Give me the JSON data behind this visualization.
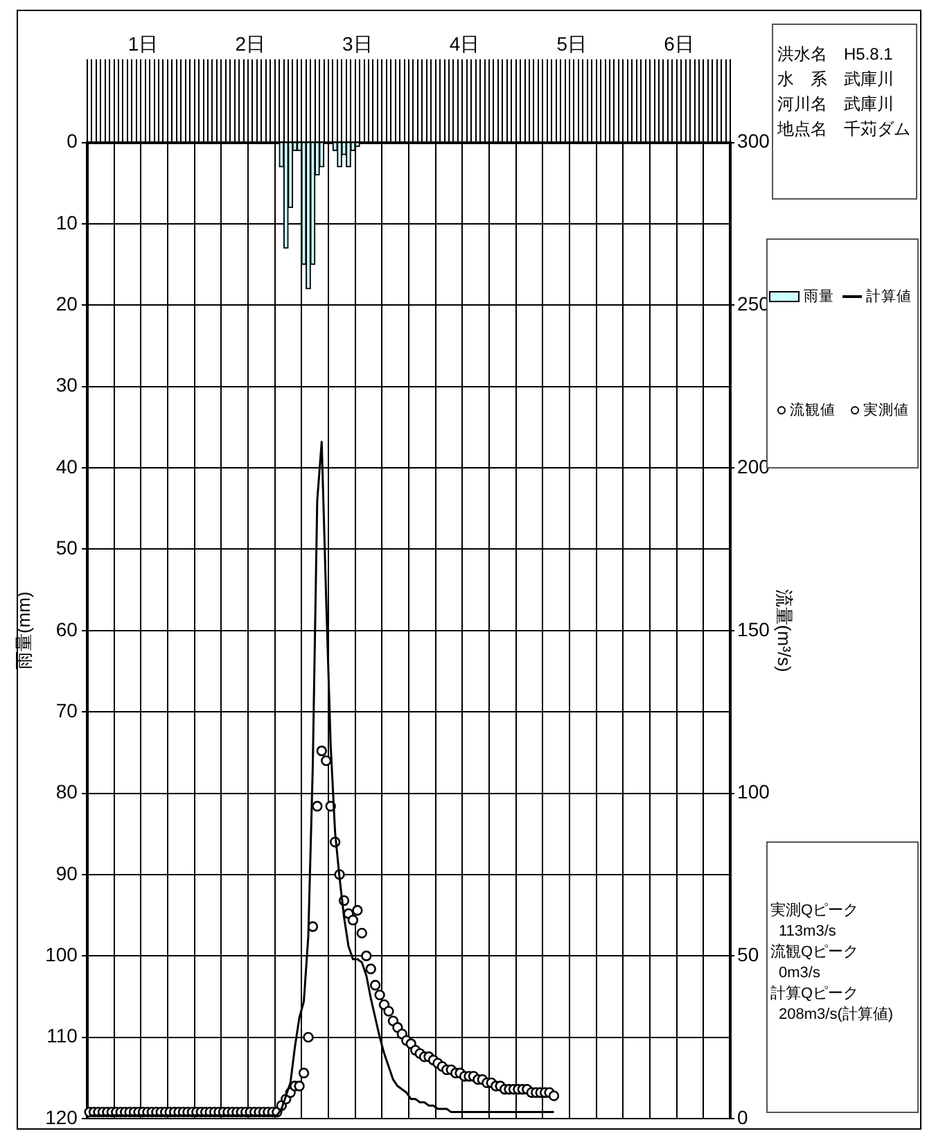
{
  "chart_data": {
    "type": "line",
    "categories": [
      null,
      null,
      null,
      null,
      null,
      null,
      null,
      null,
      null,
      null,
      null,
      null,
      "1日",
      null,
      null,
      null,
      null,
      null,
      null,
      null,
      null,
      null,
      null,
      null,
      null,
      null,
      null,
      null,
      null,
      null,
      null,
      null,
      null,
      null,
      null,
      null,
      "2日",
      null,
      null,
      null,
      null,
      null,
      null,
      null,
      null,
      null,
      null,
      null,
      null,
      null,
      null,
      null,
      null,
      null,
      null,
      null,
      null,
      null,
      null,
      null,
      "3日",
      null,
      null,
      null,
      null,
      null,
      null,
      null,
      null,
      null,
      null,
      null,
      null,
      null,
      null,
      null,
      null,
      null,
      null,
      null,
      null,
      null,
      null,
      null,
      "4日",
      null,
      null,
      null,
      null,
      null,
      null,
      null,
      null,
      null,
      null,
      null,
      null,
      null,
      null,
      null,
      null,
      null,
      null,
      null,
      null,
      null,
      null,
      null,
      "5日",
      null,
      null,
      null,
      null,
      null,
      null,
      null,
      null,
      null,
      null,
      null,
      null,
      null,
      null,
      null,
      null,
      null,
      null,
      null,
      null,
      null,
      null,
      null,
      "6日",
      null,
      null,
      null,
      null,
      null,
      null,
      null,
      null,
      null,
      null,
      null
    ],
    "ylabel": "雨量(mm)",
    "y2label": "流量(m³/s)",
    "ylim": [
      120,
      0
    ],
    "yticks": [
      0,
      10,
      20,
      30,
      40,
      50,
      60,
      70,
      80,
      90,
      100,
      110,
      120
    ],
    "y2lim": [
      0,
      300
    ],
    "y2ticks": [
      0,
      50,
      100,
      150,
      200,
      250,
      300
    ],
    "grid": true,
    "legend": "right",
    "series": [
      {
        "name": "雨量",
        "type": "bar",
        "color": "#ccffff",
        "values": [
          null,
          null,
          null,
          null,
          null,
          null,
          null,
          null,
          null,
          null,
          null,
          null,
          null,
          null,
          null,
          null,
          null,
          null,
          null,
          null,
          null,
          null,
          null,
          null,
          null,
          null,
          null,
          null,
          null,
          null,
          null,
          null,
          null,
          null,
          null,
          null,
          null,
          null,
          null,
          null,
          null,
          null,
          null,
          3,
          13,
          8,
          1,
          1,
          15,
          18,
          15,
          4,
          3,
          null,
          null,
          1,
          3,
          1.5,
          3,
          1,
          0.5,
          null,
          null,
          null,
          null,
          null,
          null,
          null,
          null,
          null,
          null,
          null,
          null,
          null,
          null,
          null,
          null,
          null,
          null,
          null,
          null,
          null,
          null,
          null,
          null,
          null,
          null,
          null,
          null,
          null,
          null,
          null,
          null,
          null,
          null,
          null,
          null,
          null,
          null,
          null,
          null,
          null,
          null,
          null,
          null,
          null,
          null,
          null,
          null,
          null,
          null,
          null,
          null,
          null,
          null,
          null,
          null,
          null,
          null,
          null,
          null,
          null,
          null,
          null,
          null,
          null,
          null,
          null,
          null,
          null,
          null,
          null,
          null,
          null,
          null,
          null,
          null,
          null,
          null,
          null,
          null,
          null,
          null,
          null
        ]
      },
      {
        "name": "計算値",
        "axis": "y2",
        "color": "#000000",
        "marker": "none",
        "values": [
          1,
          1,
          1,
          1,
          1,
          1,
          1,
          1,
          1,
          1,
          1,
          1,
          1,
          1,
          1,
          1,
          1,
          1,
          1,
          1,
          1,
          1,
          1,
          1,
          1,
          1,
          1,
          1,
          1,
          1,
          1,
          1,
          1,
          1,
          1,
          1,
          1,
          1,
          1,
          1,
          1,
          1,
          1,
          3,
          7,
          11,
          22,
          31,
          36,
          56,
          108,
          190,
          208,
          160,
          115,
          88,
          74,
          62,
          53,
          49,
          49,
          48,
          44,
          37,
          31,
          25,
          20,
          16,
          12,
          10,
          9,
          8,
          6,
          6,
          5,
          5,
          4,
          4,
          3,
          3,
          3,
          2,
          2,
          2,
          2,
          2,
          2,
          2,
          2,
          2,
          2,
          2,
          2,
          2,
          2,
          2,
          2,
          2,
          2,
          2,
          2,
          2,
          2,
          2,
          2,
          null,
          null,
          null,
          null,
          null,
          null,
          null,
          null,
          null,
          null,
          null,
          null,
          null,
          null,
          null,
          null,
          null,
          null,
          null,
          null,
          null,
          null,
          null,
          null,
          null,
          null,
          null,
          null,
          null,
          null,
          null,
          null,
          null,
          null,
          null,
          null,
          null,
          null,
          null
        ]
      },
      {
        "name": "流観値",
        "type": "scatter",
        "axis": "y2",
        "color": "#000000",
        "marker": "circle",
        "values": [
          null,
          null,
          null,
          null,
          null,
          null,
          null,
          null,
          null,
          null,
          null,
          null,
          null,
          null,
          null,
          null,
          null,
          null,
          null,
          null,
          null,
          null,
          null,
          null,
          null,
          null,
          null,
          null,
          null,
          null,
          null,
          null,
          null,
          null,
          null,
          null,
          null,
          null,
          null,
          null,
          null,
          null,
          null,
          null,
          null,
          null,
          null,
          null,
          null,
          null,
          null,
          null,
          null,
          null,
          null,
          null,
          null,
          null,
          null,
          null,
          null,
          null,
          null,
          null,
          null,
          null,
          null,
          null,
          null,
          null,
          null,
          null,
          null,
          null,
          null,
          null,
          null,
          null,
          null,
          null,
          null,
          null,
          null,
          null,
          null,
          null,
          null,
          null,
          null,
          null,
          null,
          null,
          null,
          null,
          null,
          null,
          null,
          null,
          null,
          null,
          null,
          null,
          null,
          null,
          null,
          null,
          null,
          null,
          null,
          null,
          null,
          null,
          null,
          null,
          null,
          null,
          null,
          null,
          null,
          null,
          null,
          null,
          null,
          null,
          null,
          null,
          null,
          null,
          null,
          null,
          null,
          null,
          null,
          null,
          null,
          null,
          null,
          null,
          null,
          null,
          null,
          null,
          null,
          null
        ]
      },
      {
        "name": "実測値",
        "type": "scatter",
        "axis": "y2",
        "color": "#000000",
        "marker": "circle",
        "values": [
          2,
          2,
          2,
          2,
          2,
          2,
          2,
          2,
          2,
          2,
          2,
          2,
          2,
          2,
          2,
          2,
          2,
          2,
          2,
          2,
          2,
          2,
          2,
          2,
          2,
          2,
          2,
          2,
          2,
          2,
          2,
          2,
          2,
          2,
          2,
          2,
          2,
          2,
          2,
          2,
          2,
          2,
          2,
          4,
          6,
          8,
          10,
          10,
          14,
          25,
          59,
          96,
          113,
          110,
          96,
          85,
          75,
          67,
          63,
          61,
          64,
          57,
          50,
          46,
          41,
          38,
          35,
          33,
          30,
          28,
          26,
          24,
          23,
          21,
          20,
          19,
          19,
          18,
          17,
          16,
          15,
          15,
          14,
          14,
          13,
          13,
          13,
          12,
          12,
          11,
          11,
          10,
          10,
          9,
          9,
          9,
          9,
          9,
          9,
          8,
          8,
          8,
          8,
          8,
          7,
          null,
          null,
          null,
          null,
          null,
          null,
          null,
          null,
          null,
          null,
          null,
          null,
          null,
          null,
          null,
          null,
          null,
          null,
          null,
          null,
          null,
          null,
          null,
          null,
          null,
          null,
          null,
          null,
          null,
          null,
          null,
          null,
          null,
          null,
          null,
          null,
          null,
          null,
          null
        ]
      }
    ],
    "annotations": [
      "洪水名　H5.8.1",
      "水　系　武庫川",
      "河川名　武庫川",
      "地点名　千苅ダム",
      "実測Qピーク",
      "113m3/s",
      "流観Qピーク",
      "0m3/s",
      "計算Qピーク",
      "208m3/s(計算値)"
    ]
  }
}
